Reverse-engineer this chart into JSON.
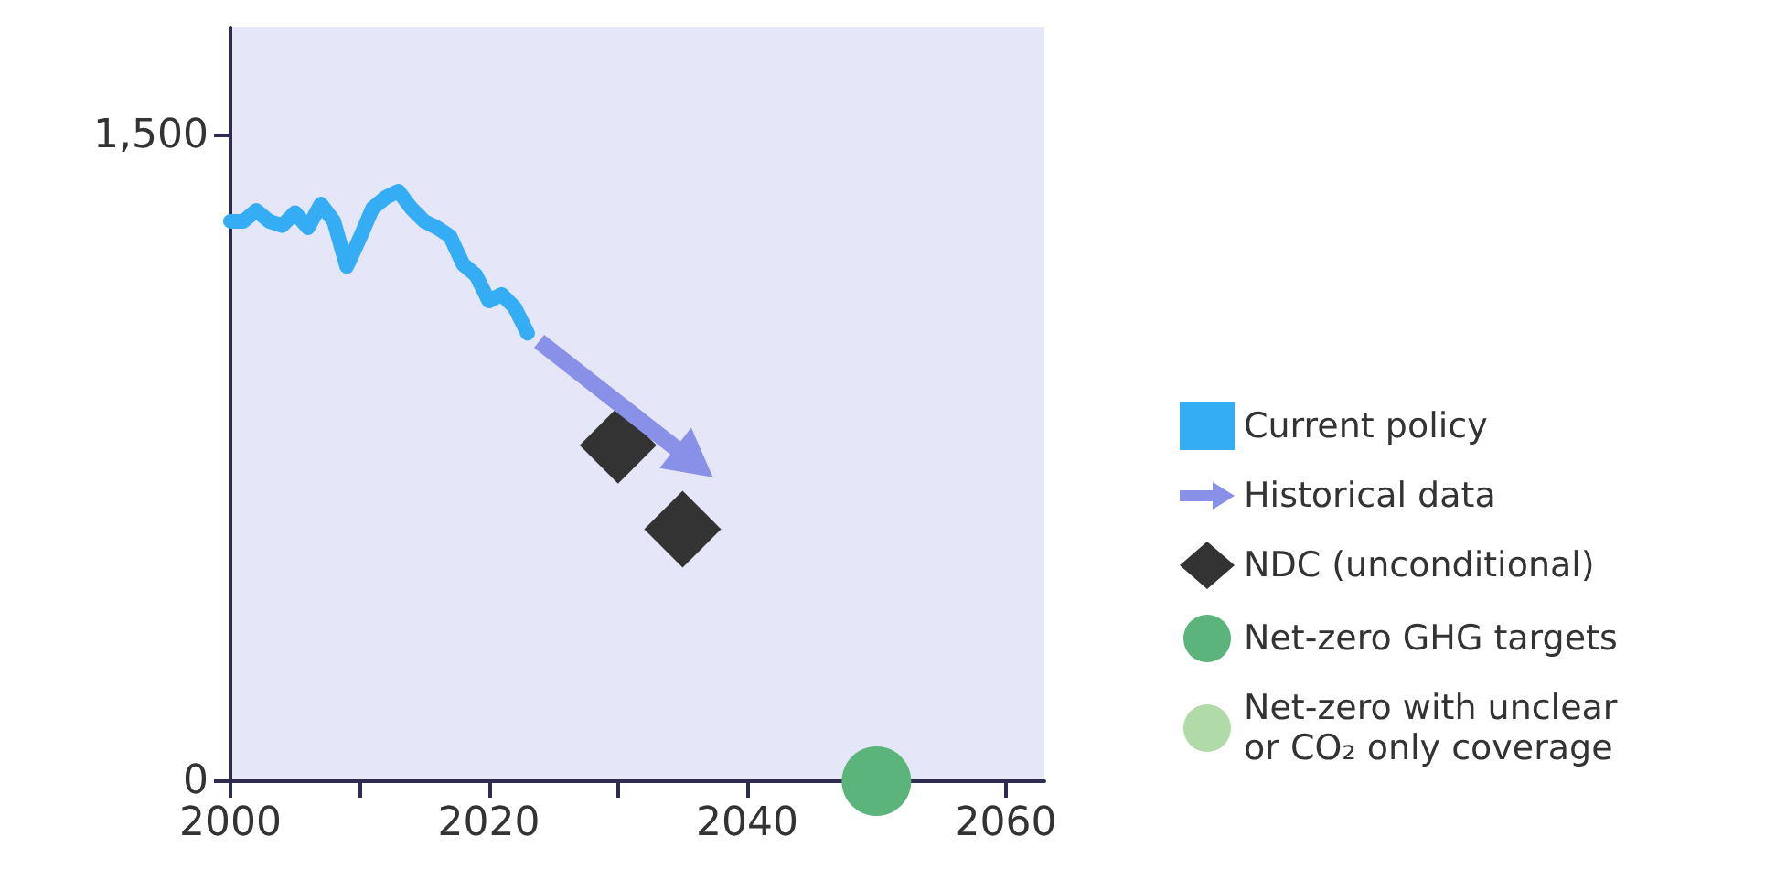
{
  "chart_data": {
    "type": "line",
    "xlim": [
      2000,
      2063
    ],
    "ylim": [
      0,
      1750
    ],
    "xticks": [
      2000,
      {
        "value": 2010,
        "label": null
      },
      2020,
      {
        "value": 2030,
        "label": null
      },
      2040,
      {
        "value": 2050,
        "label": null
      },
      2060
    ],
    "yticks": [
      0,
      {
        "value": 1500,
        "label": "1,500"
      }
    ],
    "legend": "right",
    "grid": false,
    "series": [
      {
        "name": "Current policy",
        "marker": "none",
        "color": "#35adf5",
        "x": [
          2000,
          2001,
          2002,
          2003,
          2004,
          2005,
          2006,
          2007,
          2008,
          2009,
          2010,
          2011,
          2012,
          2013,
          2014,
          2015,
          2016,
          2017,
          2018,
          2019,
          2020,
          2021,
          2022,
          2023
        ],
        "values": [
          1300,
          1300,
          1325,
          1300,
          1290,
          1320,
          1285,
          1340,
          1300,
          1195,
          1260,
          1330,
          1355,
          1370,
          1330,
          1300,
          1285,
          1265,
          1200,
          1175,
          1115,
          1130,
          1100,
          1040
        ]
      },
      {
        "name": "Historical data",
        "marker": "none",
        "color": "#8890e8"
      },
      {
        "name": "NDC (unconditional)",
        "type": "scatter",
        "marker": "diamond",
        "color": "#333333",
        "x": [
          2030,
          2035
        ],
        "values": [
          780,
          585
        ]
      },
      {
        "name": "Net-zero GHG targets",
        "type": "scatter",
        "marker": "circle",
        "color": "#5bb57b",
        "x": [
          2050
        ],
        "values": [
          0
        ]
      },
      {
        "name": "Net-zero with unclear\nor CO₂ only coverage",
        "type": "scatter",
        "marker": "circle",
        "color": "#b0dba8"
      }
    ]
  }
}
